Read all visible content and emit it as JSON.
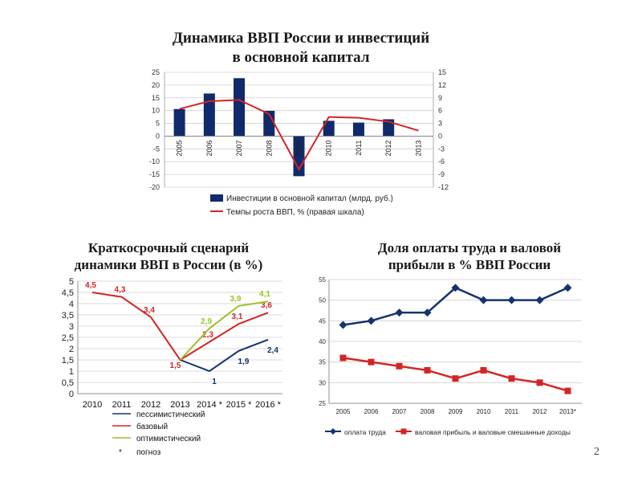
{
  "titles": {
    "chart1": "Динамика ВВП России и инвестиций\nв основной капитал",
    "chart2": "Краткосрочный сценарий\nдинамики ВВП в России (в %)",
    "chart3": "Доля оплаты труда и валовой\nприбыли в % ВВП России"
  },
  "page_number": "2",
  "colors": {
    "bar": "#102a6b",
    "red": "#d42424",
    "blue": "#14336e",
    "green": "#9bc224",
    "grid": "#cfcfcf"
  },
  "chart_data": [
    {
      "type": "bar",
      "categories": [
        "2005",
        "2006",
        "2007",
        "2008",
        "2009",
        "2010",
        "2011",
        "2012",
        "2013"
      ],
      "series": [
        {
          "name": "Инвестиции в основной капитал (млрд. руб.)",
          "type": "bar",
          "axis": "left",
          "values": [
            10.6,
            16.7,
            22.7,
            9.9,
            -15.7,
            6.0,
            5.3,
            6.6,
            0
          ]
        },
        {
          "name": "Темпы роста ВВП, % (правая шкала)",
          "type": "line",
          "axis": "right",
          "values": [
            6.4,
            8.2,
            8.5,
            5.2,
            -7.8,
            4.5,
            4.3,
            3.4,
            1.3
          ]
        }
      ],
      "ylim": [
        -20,
        25
      ],
      "yticks": [
        "25",
        "20",
        "15",
        "10",
        "5",
        "0",
        "-5",
        "-10",
        "-15",
        "-20"
      ],
      "y2lim": [
        -12,
        15
      ],
      "y2ticks": [
        "15",
        "12",
        "9",
        "6",
        "3",
        "0",
        "-3",
        "-6",
        "-9",
        "-12"
      ],
      "legend_position": "bottom"
    },
    {
      "type": "line",
      "categories": [
        "2010",
        "2011",
        "2012",
        "2013",
        "2014 *",
        "2015 *",
        "2016 *"
      ],
      "series": [
        {
          "name": "пессимистический",
          "values": [
            null,
            null,
            null,
            1.5,
            1.0,
            1.9,
            2.4
          ],
          "labels": [
            "",
            "",
            "",
            "",
            "1",
            "1,9",
            "2,4"
          ]
        },
        {
          "name": "базовый",
          "values": [
            4.5,
            4.3,
            3.4,
            1.5,
            2.3,
            3.1,
            3.6
          ],
          "labels": [
            "4,5",
            "4,3",
            "3,4",
            "1,5",
            "2,3",
            "3,1",
            "3,6"
          ]
        },
        {
          "name": "оптимистический",
          "values": [
            null,
            null,
            null,
            1.5,
            2.9,
            3.9,
            4.1
          ],
          "labels": [
            "",
            "",
            "",
            "",
            "2,9",
            "3,9",
            "4,1"
          ]
        }
      ],
      "ylim": [
        0,
        5
      ],
      "yticks": [
        "0",
        "0,5",
        "1",
        "1,5",
        "2",
        "2,5",
        "3",
        "3,5",
        "4",
        "4,5",
        "5"
      ],
      "footnote": {
        "star": "*",
        "text": "погноз"
      },
      "legend_position": "bottom"
    },
    {
      "type": "line",
      "categories": [
        "2005",
        "2006",
        "2007",
        "2008",
        "2009",
        "2010",
        "2011",
        "2012",
        "2013*"
      ],
      "series": [
        {
          "name": "оплата труда",
          "values": [
            44,
            45,
            47,
            47,
            53,
            50,
            50,
            50,
            53
          ]
        },
        {
          "name": "валовая прибыль и валовые смешанные доходы",
          "values": [
            36,
            35,
            34,
            33,
            31,
            33,
            31,
            30,
            28
          ]
        }
      ],
      "ylim": [
        25,
        55
      ],
      "yticks": [
        "25",
        "30",
        "35",
        "40",
        "45",
        "50",
        "55"
      ],
      "legend_position": "bottom"
    }
  ]
}
